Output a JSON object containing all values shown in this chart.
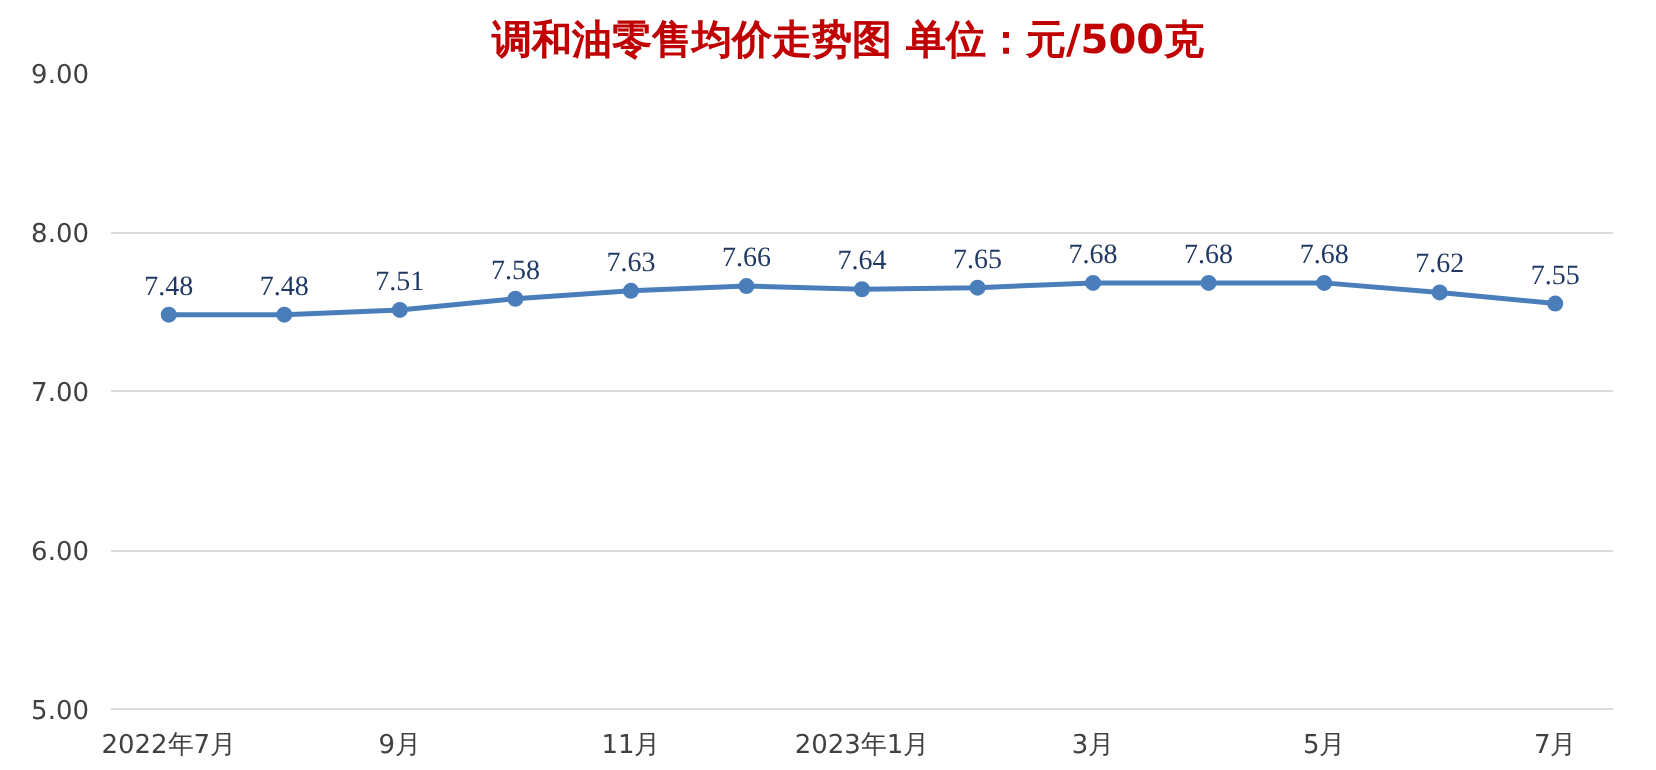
{
  "chart_data": {
    "type": "line",
    "title": "调和油零售均价走势图   单位：元/500克",
    "categories": [
      "2022年7月",
      null,
      "9月",
      null,
      "11月",
      null,
      "2023年1月",
      null,
      "3月",
      null,
      "5月",
      null,
      "7月"
    ],
    "series": [
      {
        "color": "#4a7ebb",
        "values": [
          7.48,
          7.48,
          7.51,
          7.58,
          7.63,
          7.66,
          7.64,
          7.65,
          7.68,
          7.68,
          7.68,
          7.62,
          7.55
        ]
      }
    ],
    "ylim": [
      5,
      9
    ],
    "yticks": [
      {
        "value": 5,
        "label": "5.00"
      },
      {
        "value": 6,
        "label": "6.00"
      },
      {
        "value": 7,
        "label": "7.00"
      },
      {
        "value": 8,
        "label": "8.00"
      },
      {
        "value": 9,
        "label": "9.00"
      }
    ],
    "grid": "y",
    "marker": "circle",
    "line_style": "solid",
    "data_labels": true
  }
}
